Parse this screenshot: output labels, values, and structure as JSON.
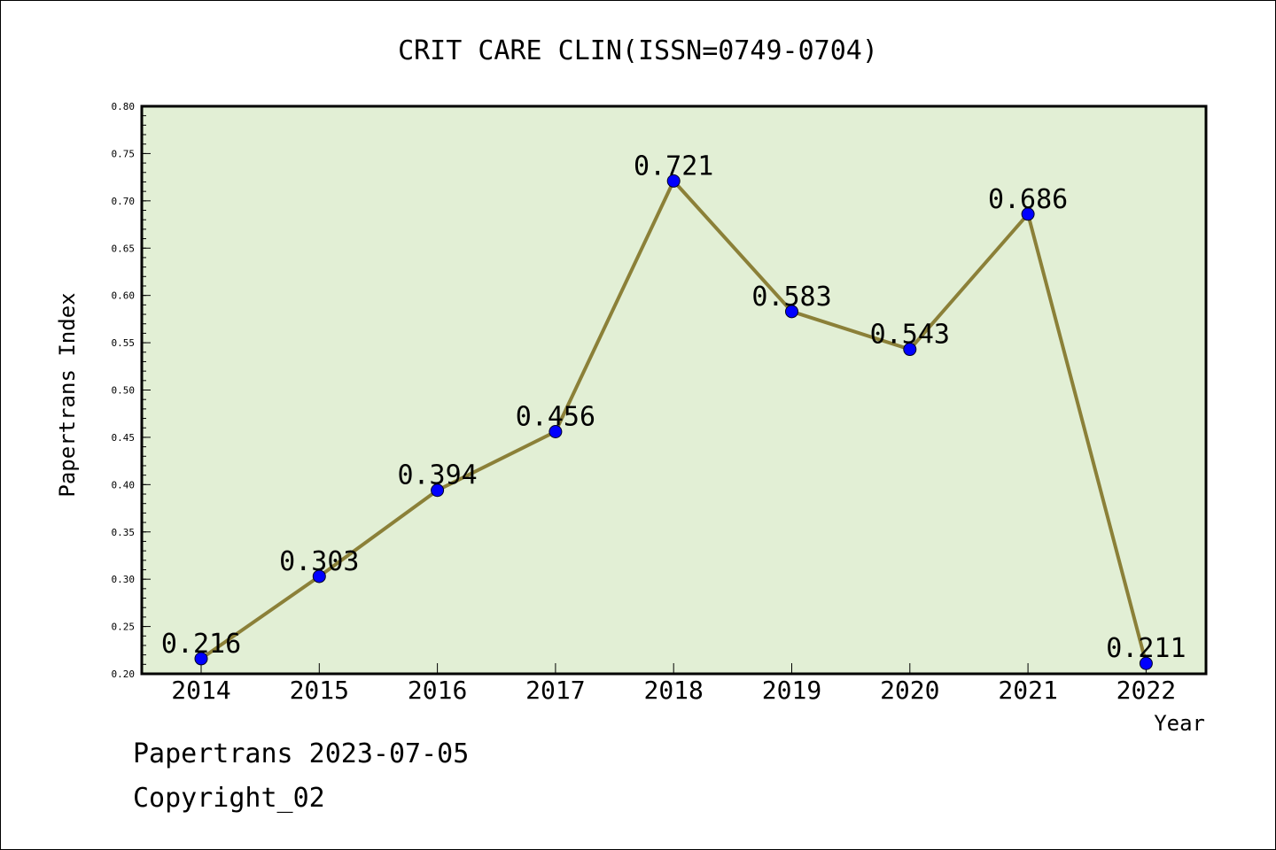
{
  "chart_data": {
    "type": "line",
    "title": "CRIT CARE CLIN(ISSN=0749-0704)",
    "xlabel": "Year",
    "ylabel": "Papertrans Index",
    "categories": [
      "2014",
      "2015",
      "2016",
      "2017",
      "2018",
      "2019",
      "2020",
      "2021",
      "2022"
    ],
    "series": [
      {
        "values": [
          0.216,
          0.303,
          0.394,
          0.456,
          0.721,
          0.583,
          0.543,
          0.686,
          0.211
        ],
        "labels": [
          "0.216",
          "0.303",
          "0.394",
          "0.456",
          "0.721",
          "0.583",
          "0.543",
          "0.686",
          "0.211"
        ]
      }
    ],
    "ylim": [
      0.2,
      0.8
    ],
    "yticks": [
      "0.20",
      "0.25",
      "0.30",
      "0.35",
      "0.40",
      "0.45",
      "0.50",
      "0.55",
      "0.60",
      "0.65",
      "0.70",
      "0.75",
      "0.80"
    ],
    "grid": false,
    "colors": {
      "plot_background": "#e2efd5",
      "line": "#8b8038",
      "marker": "#0000ff"
    }
  },
  "footer": {
    "source": "Papertrans 2023-07-05",
    "copyright": "Copyright_02"
  }
}
